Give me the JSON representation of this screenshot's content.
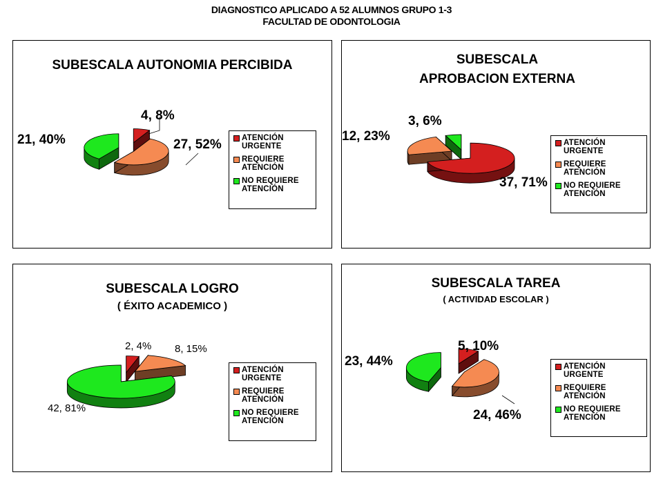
{
  "page": {
    "title_line1": "DIAGNOSTICO APLICADO A 52 ALUMNOS GRUPO 1-3",
    "title_line2": "FACULTAD DE ODONTOLOGIA"
  },
  "colors": {
    "urgente": "#d41f1f",
    "requiere": "#f58a52",
    "no_requiere": "#1ee81e"
  },
  "legend": [
    "ATENCIÓN URGENTE",
    "REQUIERE ATENCIÓN",
    "NO REQUIERE ATENCIÓN"
  ],
  "chart_data": [
    {
      "type": "pie",
      "title": "SUBESCALA AUTONOMIA PERCIBIDA",
      "subtitle": "",
      "categories": [
        "ATENCIÓN URGENTE",
        "REQUIERE ATENCIÓN",
        "NO REQUIERE ATENCIÓN"
      ],
      "values": [
        4,
        27,
        21
      ],
      "percents": [
        8,
        52,
        40
      ],
      "data_labels": [
        "4, 8%",
        "27, 52%",
        "21, 40%"
      ],
      "exploded": true,
      "legend_position": "right"
    },
    {
      "type": "pie",
      "title": "SUBESCALA APROBACION EXTERNA",
      "subtitle": "",
      "categories": [
        "ATENCIÓN URGENTE",
        "REQUIERE ATENCIÓN",
        "NO REQUIERE ATENCIÓN"
      ],
      "values": [
        37,
        12,
        3
      ],
      "percents": [
        71,
        23,
        6
      ],
      "data_labels": [
        "37, 71%",
        "12, 23%",
        "3, 6%"
      ],
      "exploded": true,
      "legend_position": "right"
    },
    {
      "type": "pie",
      "title": "SUBESCALA LOGRO",
      "subtitle": "( ÉXITO ACADEMICO )",
      "categories": [
        "ATENCIÓN URGENTE",
        "REQUIERE ATENCIÓN",
        "NO REQUIERE ATENCIÓN"
      ],
      "values": [
        2,
        8,
        42
      ],
      "percents": [
        4,
        15,
        81
      ],
      "data_labels": [
        "2, 4%",
        "8, 15%",
        "42, 81%"
      ],
      "exploded": true,
      "legend_position": "right"
    },
    {
      "type": "pie",
      "title": "SUBESCALA TAREA",
      "subtitle": "( ACTIVIDAD ESCOLAR )",
      "categories": [
        "ATENCIÓN URGENTE",
        "REQUIERE ATENCIÓN",
        "NO REQUIERE ATENCIÓN"
      ],
      "values": [
        5,
        24,
        23
      ],
      "percents": [
        10,
        46,
        44
      ],
      "data_labels": [
        "5, 10%",
        "24, 46%",
        "23, 44%"
      ],
      "exploded": true,
      "legend_position": "right"
    }
  ]
}
